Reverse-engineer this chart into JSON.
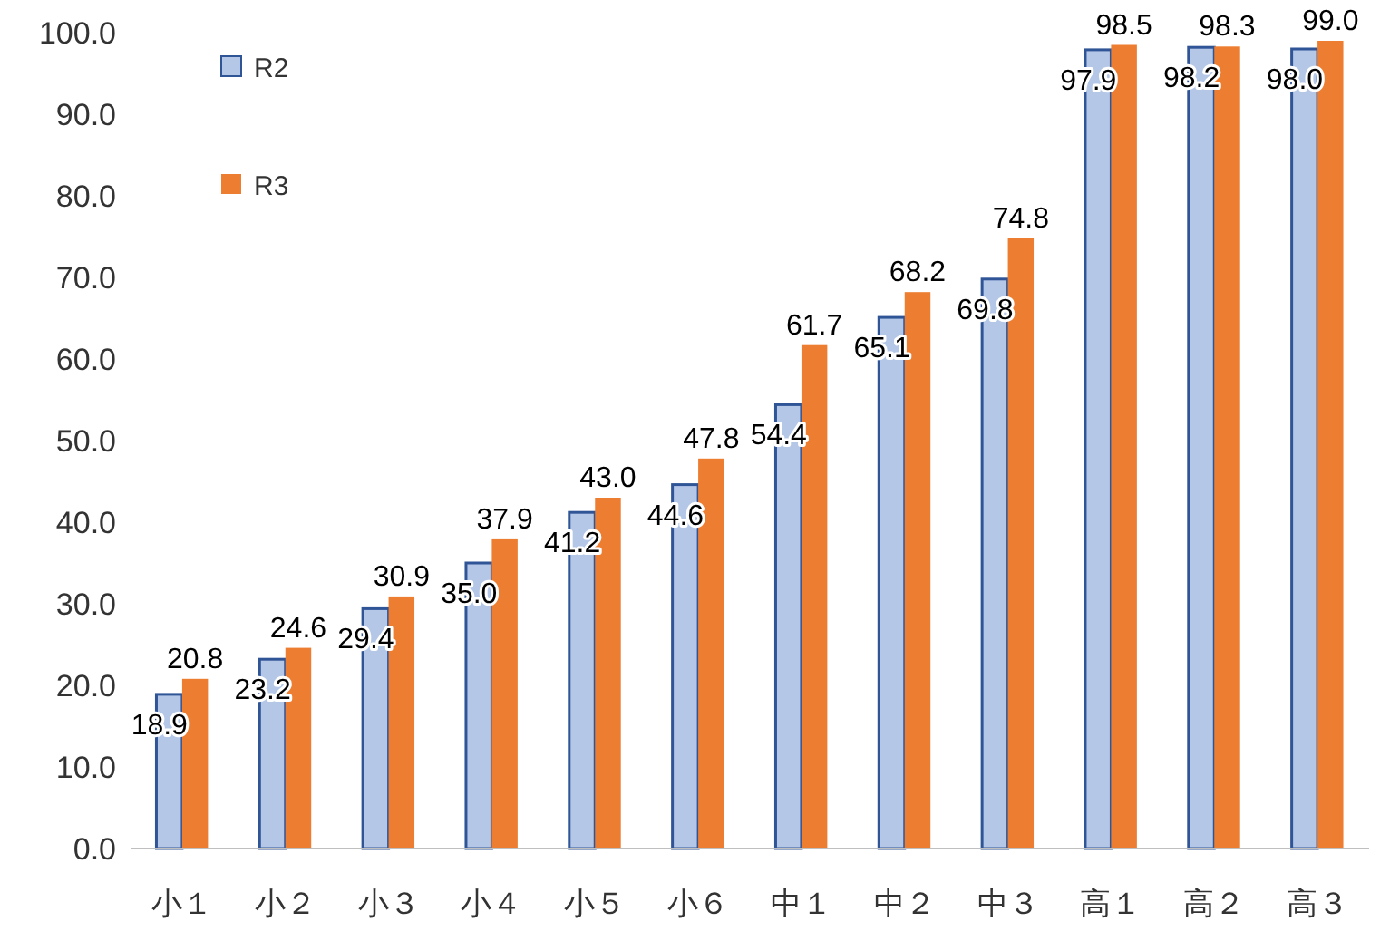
{
  "chart_data": {
    "type": "bar",
    "categories": [
      "小１",
      "小２",
      "小３",
      "小４",
      "小５",
      "小６",
      "中１",
      "中２",
      "中３",
      "高１",
      "高２",
      "高３"
    ],
    "series": [
      {
        "name": "R2",
        "color": "#b4c7e7",
        "values": [
          18.9,
          23.2,
          29.4,
          35.0,
          41.2,
          44.6,
          54.4,
          65.1,
          69.8,
          97.9,
          98.2,
          98.0
        ],
        "value_labels": [
          "18.9",
          "23.2",
          "29.4",
          "35.0",
          "41.2",
          "44.6",
          "54.4",
          "65.1",
          "69.8",
          "97.9",
          "98.2",
          "98.0"
        ]
      },
      {
        "name": "R3",
        "color": "#ed7d31",
        "values": [
          20.8,
          24.6,
          30.9,
          37.9,
          43.0,
          47.8,
          61.7,
          68.2,
          74.8,
          98.5,
          98.3,
          99.0
        ],
        "value_labels": [
          "20.8",
          "24.6",
          "30.9",
          "37.9",
          "43.0",
          "47.8",
          "61.7",
          "68.2",
          "74.8",
          "98.5",
          "98.3",
          "99.0"
        ]
      }
    ],
    "ylim": [
      0,
      100
    ],
    "yticks": [
      {
        "value": 0,
        "label": "0.0"
      },
      {
        "value": 10,
        "label": "10.0"
      },
      {
        "value": 20,
        "label": "20.0"
      },
      {
        "value": 30,
        "label": "30.0"
      },
      {
        "value": 40,
        "label": "40.0"
      },
      {
        "value": 50,
        "label": "50.0"
      },
      {
        "value": 60,
        "label": "60.0"
      },
      {
        "value": 70,
        "label": "70.0"
      },
      {
        "value": 80,
        "label": "80.0"
      },
      {
        "value": 90,
        "label": "90.0"
      },
      {
        "value": 100,
        "label": "100.0"
      }
    ],
    "grid": false,
    "legend": "top left"
  }
}
